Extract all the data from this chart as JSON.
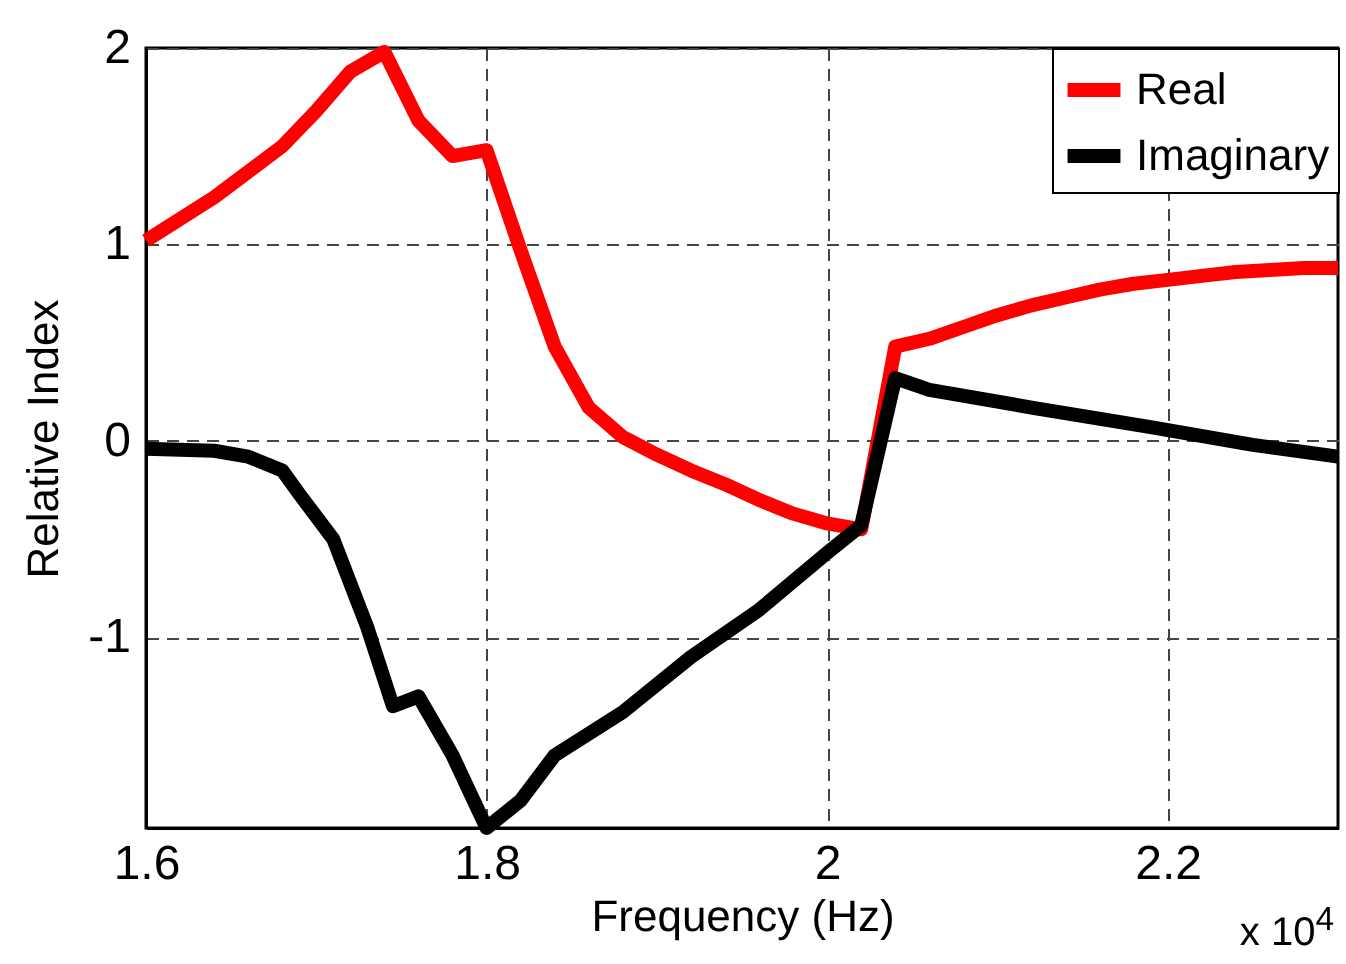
{
  "chart_data": {
    "type": "line",
    "xlabel": "Frequency (Hz)",
    "ylabel": "Relative Index",
    "annotations": [
      "x 10$^{4}$"
    ],
    "xlim": [
      1.6,
      2.3
    ],
    "ylim": [
      -1.97,
      2
    ],
    "xticks": [
      1.6,
      1.8,
      2,
      2.2
    ],
    "yticks": [
      -1,
      0,
      1,
      2
    ],
    "grid": true,
    "legend": "top right",
    "line_style": "solid",
    "marker": "none",
    "series": [
      {
        "name": "Real",
        "color": "#ff0000",
        "x": [
          1.6,
          1.64,
          1.68,
          1.7,
          1.72,
          1.74,
          1.76,
          1.78,
          1.8,
          1.82,
          1.84,
          1.86,
          1.88,
          1.9,
          1.92,
          1.94,
          1.96,
          1.98,
          2.0,
          2.02,
          2.04,
          2.06,
          2.08,
          2.1,
          2.12,
          2.14,
          2.16,
          2.18,
          2.2,
          2.22,
          2.24,
          2.26,
          2.28,
          2.3
        ],
        "values": [
          1.02,
          1.24,
          1.5,
          1.68,
          1.88,
          1.98,
          1.63,
          1.45,
          1.48,
          0.97,
          0.48,
          0.17,
          0.02,
          -0.07,
          -0.15,
          -0.22,
          -0.3,
          -0.37,
          -0.42,
          -0.45,
          0.48,
          0.52,
          0.58,
          0.64,
          0.69,
          0.73,
          0.77,
          0.8,
          0.82,
          0.84,
          0.86,
          0.87,
          0.88,
          0.88
        ]
      },
      {
        "name": "Imaginary",
        "color": "#000000",
        "x": [
          1.6,
          1.64,
          1.66,
          1.68,
          1.69,
          1.71,
          1.73,
          1.745,
          1.76,
          1.78,
          1.8,
          1.82,
          1.84,
          1.88,
          1.92,
          1.96,
          2.0,
          2.02,
          2.04,
          2.06,
          2.12,
          2.19,
          2.25,
          2.3
        ],
        "values": [
          -0.04,
          -0.05,
          -0.08,
          -0.15,
          -0.27,
          -0.5,
          -0.95,
          -1.35,
          -1.3,
          -1.6,
          -1.97,
          -1.83,
          -1.6,
          -1.38,
          -1.1,
          -0.86,
          -0.57,
          -0.43,
          0.32,
          0.26,
          0.17,
          0.07,
          -0.02,
          -0.08
        ]
      }
    ]
  }
}
